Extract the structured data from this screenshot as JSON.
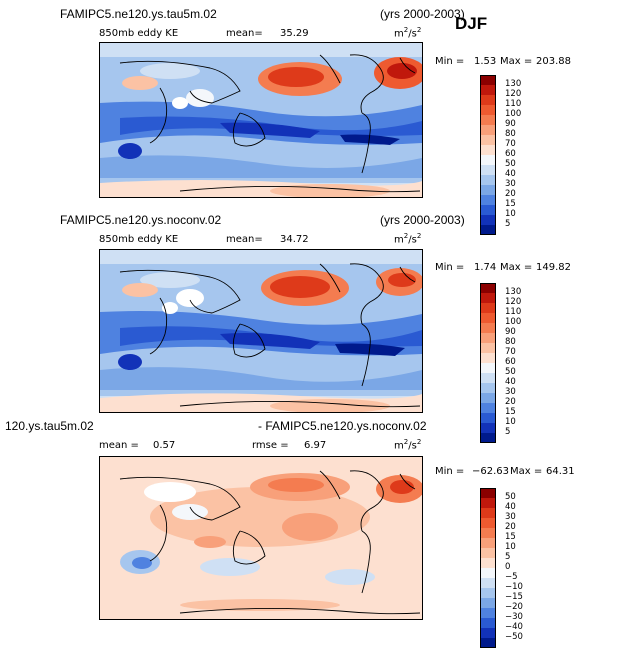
{
  "chart_data": [
    {
      "type": "heatmap",
      "title": "FAMIPC5.ne120.ys.tau5m.02",
      "years": "(yrs 2000-2003)",
      "season": "DJF",
      "subtitle": "850mb eddy KE",
      "mean_label": "mean=",
      "mean": "35.29",
      "units": "m",
      "units_exp": "2",
      "units_den": "/s",
      "min_label": "Min =",
      "min": "1.53",
      "max_label": "Max =",
      "max": "203.88",
      "levels": [
        "130",
        "120",
        "110",
        "100",
        "90",
        "80",
        "70",
        "60",
        "50",
        "40",
        "30",
        "20",
        "15",
        "10",
        "5"
      ],
      "colors": [
        "#8b0000",
        "#c0180c",
        "#de3a1a",
        "#ee5a30",
        "#f47c50",
        "#f8a07a",
        "#fbc2a4",
        "#fde0d0",
        "#f4f7fb",
        "#cfe0f4",
        "#a6c6ee",
        "#7ba7e6",
        "#4f82e0",
        "#2a5ad2",
        "#1232b8",
        "#001a8c"
      ]
    },
    {
      "type": "heatmap",
      "title": "FAMIPC5.ne120.ys.noconv.02",
      "years": "(yrs 2000-2003)",
      "subtitle": "850mb eddy KE",
      "mean_label": "mean=",
      "mean": "34.72",
      "units": "m",
      "units_exp": "2",
      "units_den": "/s",
      "min_label": "Min =",
      "min": "1.74",
      "max_label": "Max =",
      "max": "149.82",
      "levels": [
        "130",
        "120",
        "110",
        "100",
        "90",
        "80",
        "70",
        "60",
        "50",
        "40",
        "30",
        "20",
        "15",
        "10",
        "5"
      ],
      "colors": [
        "#8b0000",
        "#c0180c",
        "#de3a1a",
        "#ee5a30",
        "#f47c50",
        "#f8a07a",
        "#fbc2a4",
        "#fde0d0",
        "#f4f7fb",
        "#cfe0f4",
        "#a6c6ee",
        "#7ba7e6",
        "#4f82e0",
        "#2a5ad2",
        "#1232b8",
        "#001a8c"
      ]
    },
    {
      "type": "heatmap",
      "title_left": "120.ys.tau5m.02",
      "title_right": "- FAMIPC5.ne120.ys.noconv.02",
      "mean_label": "mean =",
      "mean": "0.57",
      "rmse_label": "rmse =",
      "rmse": "6.97",
      "units": "m",
      "units_exp": "2",
      "units_den": "/s",
      "min_label": "Min =",
      "min": "−62.63",
      "max_label": "Max =",
      "max": "64.31",
      "levels": [
        "50",
        "40",
        "30",
        "20",
        "15",
        "10",
        "5",
        "0",
        "−5",
        "−10",
        "−15",
        "−20",
        "−30",
        "−40",
        "−50"
      ],
      "colors": [
        "#8b0000",
        "#c0180c",
        "#de3a1a",
        "#ee5a30",
        "#f47c50",
        "#f8a07a",
        "#fbc2a4",
        "#fde0d0",
        "#f4f7fb",
        "#cfe0f4",
        "#a6c6ee",
        "#7ba7e6",
        "#4f82e0",
        "#2a5ad2",
        "#1232b8",
        "#001a8c"
      ]
    }
  ]
}
